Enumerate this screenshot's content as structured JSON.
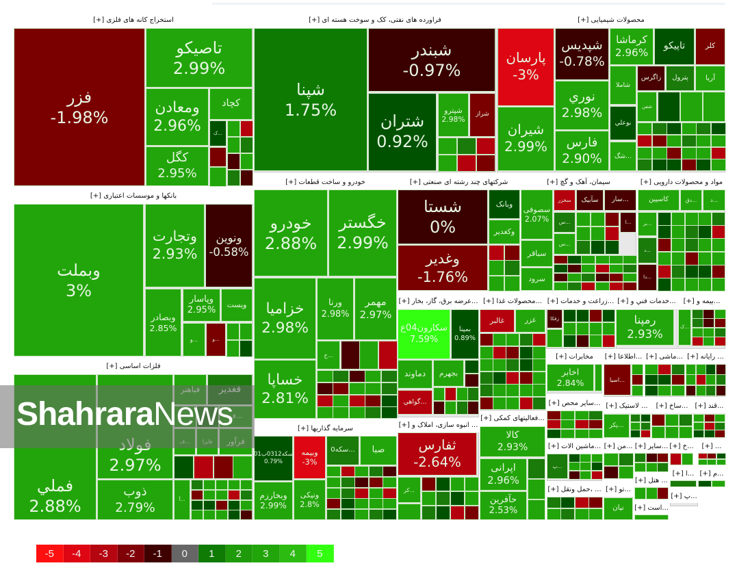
{
  "watermark": {
    "bold": "Shahrara",
    "light": "News"
  },
  "legend": [
    {
      "label": "-5",
      "color": "#ff1010"
    },
    {
      "label": "-4",
      "color": "#dd0612"
    },
    {
      "label": "-3",
      "color": "#b50510"
    },
    {
      "label": "-2",
      "color": "#800008"
    },
    {
      "label": "-1",
      "color": "#3f0000"
    },
    {
      "label": "0",
      "color": "#666666"
    },
    {
      "label": "1",
      "color": "#0f7a04"
    },
    {
      "label": "2",
      "color": "#1f9a0a"
    },
    {
      "label": "3",
      "color": "#22a50a"
    },
    {
      "label": "4",
      "color": "#2cbb10"
    },
    {
      "label": "5",
      "color": "#33ff11"
    }
  ],
  "sectors": [
    {
      "title": "استخراج کانه های فلزی [+]",
      "tiles": [
        {
          "symbol": "فزر",
          "change": "-1.98%",
          "color": "#7a0000"
        },
        {
          "symbol": "تاصیکو",
          "change": "2.99%",
          "color": "#22a50a"
        },
        {
          "symbol": "ومعادن",
          "change": "2.96%",
          "color": "#22a50a"
        },
        {
          "symbol": "کچاد",
          "change": "",
          "color": "#22a50a"
        },
        {
          "symbol": "کگل",
          "change": "2.95%",
          "color": "#22a50a"
        },
        {
          "symbol": "...ک",
          "change": "",
          "color": "#005200"
        }
      ]
    },
    {
      "title": "فراورده های نفتی، کک و سوخت هسته ای [+]",
      "tiles": [
        {
          "symbol": "شپنا",
          "change": "1.75%",
          "color": "#0e7a02"
        },
        {
          "symbol": "شبندر",
          "change": "-0.97%",
          "color": "#3a0000"
        },
        {
          "symbol": "شتران",
          "change": "0.92%",
          "color": "#005200"
        },
        {
          "symbol": "شپترو",
          "change": "2.98%",
          "color": "#22a50a"
        },
        {
          "symbol": "شراز",
          "change": "",
          "color": "#7a0000"
        }
      ]
    },
    {
      "title": "محصولات شیمیایی [+]",
      "tiles": [
        {
          "symbol": "پارسان",
          "change": "-3%",
          "color": "#dd0612"
        },
        {
          "symbol": "شپدیس",
          "change": "-0.78%",
          "color": "#3a0000"
        },
        {
          "symbol": "کرماشا",
          "change": "2.96%",
          "color": "#22a50a"
        },
        {
          "symbol": "تاپیکو",
          "change": "",
          "color": "#005200"
        },
        {
          "symbol": "کلر",
          "change": "",
          "color": "#7a0000"
        },
        {
          "symbol": "شیران",
          "change": "2.99%",
          "color": "#22a50a"
        },
        {
          "symbol": "نوري",
          "change": "2.98%",
          "color": "#22a50a"
        },
        {
          "symbol": "فارس",
          "change": "2.90%",
          "color": "#22a50a"
        },
        {
          "symbol": "شاملا",
          "change": "",
          "color": "#22a50a"
        },
        {
          "symbol": "زاگرس",
          "change": "",
          "color": "#4a0000"
        },
        {
          "symbol": "پترول",
          "change": "",
          "color": "#1a7a0a"
        },
        {
          "symbol": "آریا",
          "change": "",
          "color": "#22a50a"
        },
        {
          "symbol": "بوعلي",
          "change": "",
          "color": "#005200"
        },
        {
          "symbol": "...شگ",
          "change": "",
          "color": "#22a50a"
        },
        {
          "symbol": "شفن",
          "change": "",
          "color": "#22a50a"
        }
      ]
    },
    {
      "title": "بانکها و موسسات اعتباری [+]",
      "tiles": [
        {
          "symbol": "وبملت",
          "change": "3%",
          "color": "#22a50a"
        },
        {
          "symbol": "وتجارت",
          "change": "2.93%",
          "color": "#22a50a"
        },
        {
          "symbol": "ونوین",
          "change": "-0.58%",
          "color": "#3a0000"
        },
        {
          "symbol": "وبصادر",
          "change": "2.85%",
          "color": "#22a50a"
        },
        {
          "symbol": "وپاسار",
          "change": "2.95%",
          "color": "#22a50a"
        },
        {
          "symbol": "ویست",
          "change": "",
          "color": "#22a50a"
        },
        {
          "symbol": "...و",
          "change": "",
          "color": "#22a50a"
        },
        {
          "symbol": "...و",
          "change": "",
          "color": "#7a0000"
        }
      ]
    },
    {
      "title": "خودرو و ساخت قطعات [+]",
      "tiles": [
        {
          "symbol": "خودرو",
          "change": "2.88%",
          "color": "#22a50a"
        },
        {
          "symbol": "خگستر",
          "change": "2.99%",
          "color": "#22a50a"
        },
        {
          "symbol": "خزامیا",
          "change": "2.98%",
          "color": "#22a50a"
        },
        {
          "symbol": "ورنا",
          "change": "2.98%",
          "color": "#22a50a"
        },
        {
          "symbol": "مهمر",
          "change": "2.97%",
          "color": "#22a50a"
        },
        {
          "symbol": "خساپا",
          "change": "2.81%",
          "color": "#22a50a"
        },
        {
          "symbol": "...خ",
          "change": "",
          "color": "#22a50a"
        }
      ]
    },
    {
      "title": "فلزات اساسی [+]",
      "tiles": [
        {
          "symbol": "فملي",
          "change": "2.88%",
          "color": "#22a50a"
        },
        {
          "symbol": "فولاد",
          "change": "2.97%",
          "color": "#22a50a"
        },
        {
          "symbol": "ذوب",
          "change": "2.79%",
          "color": "#22a50a"
        },
        {
          "symbol": "فباهنر",
          "change": "",
          "color": "#22a50a"
        },
        {
          "symbol": "فغدیر",
          "change": "",
          "color": "#1a7a0a"
        },
        {
          "symbol": "...ف",
          "change": "",
          "color": "#22a50a"
        },
        {
          "symbol": "...ف",
          "change": "",
          "color": "#22a50a"
        },
        {
          "symbol": "فایرا",
          "change": "",
          "color": "#22a50a"
        },
        {
          "symbol": "فرآور",
          "change": "",
          "color": "#22a50a"
        },
        {
          "symbol": "...آ",
          "change": "",
          "color": "#22a50a"
        }
      ]
    },
    {
      "title": "سرمایه گذاریها [+]",
      "tiles": [
        {
          "symbol": "سکه0312ب01",
          "change": "0.79%",
          "color": "#005200"
        },
        {
          "symbol": "وبیمه",
          "change": "-3%",
          "color": "#dd0612"
        },
        {
          "symbol": "...سکه0",
          "change": "",
          "color": "#1a7a0a"
        },
        {
          "symbol": "صبا",
          "change": "",
          "color": "#22a50a"
        },
        {
          "symbol": "وبخارزم",
          "change": "2.99%",
          "color": "#22a50a"
        },
        {
          "symbol": "ونیکی",
          "change": "2.8%",
          "color": "#22a50a"
        }
      ]
    },
    {
      "title": "شرکتهای چند رشته ای صنعتی [+]",
      "tiles": [
        {
          "symbol": "شستا",
          "change": "0%",
          "color": "#3a0000"
        },
        {
          "symbol": "وغدیر",
          "change": "-1.76%",
          "color": "#7a0000"
        },
        {
          "symbol": "وبانک",
          "change": "",
          "color": "#005200"
        },
        {
          "symbol": "وکغدیر",
          "change": "",
          "color": "#22a50a"
        }
      ]
    },
    {
      "title": "سیمان، آهک و گچ [+]",
      "tiles": [
        {
          "symbol": "سصوفی",
          "change": "2.07%",
          "color": "#22a50a"
        },
        {
          "symbol": "سباقر",
          "change": "",
          "color": "#22a50a"
        },
        {
          "symbol": "سرود",
          "change": "",
          "color": "#22a50a"
        },
        {
          "symbol": "سخزر",
          "change": "",
          "color": "#b5000e"
        },
        {
          "symbol": "سآبیک",
          "change": "",
          "color": "#4a0000"
        },
        {
          "symbol": "...سار",
          "change": "",
          "color": "#4a0000"
        },
        {
          "symbol": "...س",
          "change": "",
          "color": "#1a7a0a"
        },
        {
          "symbol": "...س",
          "change": "",
          "color": "#22a50a"
        },
        {
          "symbol": "...ا",
          "change": "",
          "color": "#4a0000"
        }
      ]
    },
    {
      "title": "مواد و محصولات دارویی [+]",
      "tiles": [
        {
          "symbol": "کاسپین",
          "change": "",
          "color": "#22a50a"
        },
        {
          "symbol": "...دق",
          "change": "",
          "color": "#22a50a"
        },
        {
          "symbol": "...د",
          "change": "",
          "color": "#22a50a"
        },
        {
          "symbol": "...بر",
          "change": "",
          "color": "#22a50a"
        },
        {
          "symbol": "...د",
          "change": "",
          "color": "#1a7a0a"
        },
        {
          "symbol": "...دا",
          "change": "",
          "color": "#4a0000"
        }
      ]
    },
    {
      "title": "...عرضه برق، گاز، بخار [+]",
      "tiles": [
        {
          "symbol": "سکارون04ع",
          "change": "7.59%",
          "color": "#33ff11"
        },
        {
          "symbol": "بمپنا",
          "change": "0.89%",
          "color": "#005200"
        },
        {
          "symbol": "دماوند",
          "change": "",
          "color": "#22a50a"
        },
        {
          "symbol": "بجهرم",
          "change": "",
          "color": "#22a50a"
        },
        {
          "symbol": "...گواهي",
          "change": "",
          "color": "#b5000e"
        }
      ]
    },
    {
      "title": "...محصولات غذا [+]",
      "tiles": [
        {
          "symbol": "غالبر",
          "change": "",
          "color": "#b5000e"
        },
        {
          "symbol": "غزر",
          "change": "",
          "color": "#22a50a"
        }
      ]
    },
    {
      "title": "...زراعت و خدمات [+]",
      "tiles": [
        {
          "symbol": "زفکا",
          "change": "",
          "color": "#4a0000"
        }
      ]
    },
    {
      "title": "...خدمات فني و [+]",
      "tiles": [
        {
          "symbol": "رمپنا",
          "change": "2.93%",
          "color": "#22a50a"
        }
      ]
    },
    {
      "title": "...بیمه و [+]",
      "tiles": [
        {
          "symbol": "...ک",
          "change": "",
          "color": "#22a50a"
        }
      ]
    },
    {
      "title": "... انبوه سازی، املاک و [+]",
      "tiles": [
        {
          "symbol": "ثفارس",
          "change": "-2.64%",
          "color": "#b5000e"
        },
        {
          "symbol": "...کر",
          "change": "",
          "color": "#22a50a"
        }
      ]
    },
    {
      "title": "...فعالیتهای کمکی [+]",
      "tiles": [
        {
          "symbol": "کالا",
          "change": "2.93%",
          "color": "#22a50a"
        },
        {
          "symbol": "اپرانی",
          "change": "2.96%",
          "color": "#22a50a"
        },
        {
          "symbol": "حآفرین",
          "change": "2.53%",
          "color": "#22a50a"
        }
      ]
    },
    {
      "title": "مخابرات [+]",
      "tiles": [
        {
          "symbol": "اخابر",
          "change": "2.84%",
          "color": "#22a50a"
        }
      ]
    },
    {
      "title": "...اطلاعا [+]",
      "tiles": [
        {
          "symbol": "...اسیا",
          "change": "",
          "color": "#7a0000"
        }
      ]
    },
    {
      "title": "...ماشی [+]",
      "tiles": []
    },
    {
      "title": "... رایانه [+]",
      "tiles": []
    },
    {
      "title": "...سایر محص [+]",
      "tiles": []
    },
    {
      "title": "... لاستیک [+]",
      "tiles": [
        {
          "symbol": "...پکر",
          "change": "",
          "color": "#22a50a"
        }
      ]
    },
    {
      "title": "...ساخ [+]",
      "tiles": []
    },
    {
      "title": "...قند [+]",
      "tiles": []
    },
    {
      "title": "...ماشین الات [+]",
      "tiles": [
        {
          "symbol": "...پ",
          "change": "",
          "color": "#1a7a0a"
        }
      ]
    },
    {
      "title": "...من [+]",
      "tiles": []
    },
    {
      "title": "...سایر [+]",
      "tiles": []
    },
    {
      "title": "...خ [+]",
      "tiles": []
    },
    {
      "title": "... [+]",
      "tiles": []
    },
    {
      "title": "...ا [+]",
      "tiles": []
    },
    {
      "title": "...م [+]",
      "tiles": []
    },
    {
      "title": "... ،حمل ونقل [+]",
      "tiles": []
    },
    {
      "title": "...تو [+]",
      "tiles": [
        {
          "symbol": "نیان",
          "change": "",
          "color": "#22a50a"
        }
      ]
    },
    {
      "title": "... هتل [+]",
      "tiles": []
    },
    {
      "title": "...است [+]",
      "tiles": []
    },
    {
      "title": "...پ [+]",
      "tiles": []
    }
  ]
}
